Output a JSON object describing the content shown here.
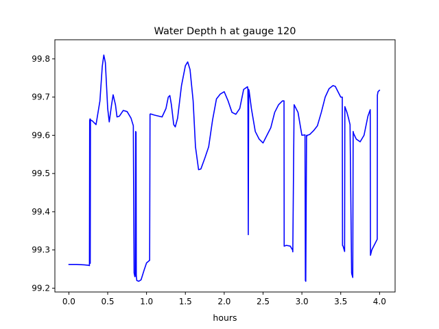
{
  "chart_data": {
    "type": "line",
    "title": "Water Depth h at gauge 120",
    "xlabel": "hours",
    "ylabel": "",
    "xlim": [
      -0.18,
      4.2
    ],
    "ylim": [
      99.19,
      99.85
    ],
    "xticks": [
      0.0,
      0.5,
      1.0,
      1.5,
      2.0,
      2.5,
      3.0,
      3.5,
      4.0
    ],
    "xtick_labels": [
      "0.0",
      "0.5",
      "1.0",
      "1.5",
      "2.0",
      "2.5",
      "3.0",
      "3.5",
      "4.0"
    ],
    "yticks": [
      99.2,
      99.3,
      99.4,
      99.5,
      99.6,
      99.7,
      99.8
    ],
    "ytick_labels": [
      "99.2",
      "99.3",
      "99.4",
      "99.5",
      "99.6",
      "99.7",
      "99.8"
    ],
    "grid": false,
    "series": [
      {
        "color": "#0000ff",
        "x": [
          0.0,
          0.1,
          0.2,
          0.25,
          0.265,
          0.268,
          0.27,
          0.272,
          0.275,
          0.278,
          0.28,
          0.3,
          0.35,
          0.4,
          0.43,
          0.45,
          0.47,
          0.5,
          0.52,
          0.55,
          0.57,
          0.6,
          0.62,
          0.65,
          0.7,
          0.75,
          0.8,
          0.83,
          0.84,
          0.845,
          0.85,
          0.855,
          0.86,
          0.865,
          0.868,
          0.87,
          0.875,
          0.9,
          0.93,
          0.97,
          1.0,
          1.04,
          1.045,
          1.05,
          1.1,
          1.2,
          1.25,
          1.28,
          1.3,
          1.32,
          1.35,
          1.37,
          1.4,
          1.45,
          1.5,
          1.53,
          1.56,
          1.6,
          1.63,
          1.67,
          1.7,
          1.75,
          1.8,
          1.85,
          1.9,
          1.95,
          2.0,
          2.05,
          2.1,
          2.15,
          2.2,
          2.25,
          2.3,
          2.305,
          2.31,
          2.315,
          2.32,
          2.35,
          2.4,
          2.45,
          2.5,
          2.55,
          2.6,
          2.65,
          2.7,
          2.75,
          2.77,
          2.772,
          2.8,
          2.85,
          2.88,
          2.883,
          2.9,
          2.95,
          3.0,
          3.04,
          3.045,
          3.05,
          3.06,
          3.065,
          3.07,
          3.1,
          3.15,
          3.2,
          3.25,
          3.3,
          3.35,
          3.4,
          3.43,
          3.45,
          3.5,
          3.52,
          3.523,
          3.53,
          3.55,
          3.553,
          3.58,
          3.6,
          3.62,
          3.64,
          3.645,
          3.65,
          3.655,
          3.66,
          3.665,
          3.7,
          3.75,
          3.8,
          3.85,
          3.88,
          3.883,
          3.9,
          3.95,
          3.97,
          3.972,
          3.98,
          4.0
        ],
        "y": [
          99.262,
          99.262,
          99.261,
          99.26,
          99.259,
          99.64,
          99.27,
          99.643,
          99.265,
          99.642,
          99.64,
          99.638,
          99.628,
          99.69,
          99.78,
          99.81,
          99.79,
          99.67,
          99.635,
          99.68,
          99.706,
          99.68,
          99.648,
          99.65,
          99.665,
          99.662,
          99.645,
          99.625,
          99.24,
          99.235,
          99.23,
          99.232,
          99.61,
          99.608,
          99.235,
          99.228,
          99.22,
          99.218,
          99.222,
          99.248,
          99.266,
          99.273,
          99.655,
          99.656,
          99.653,
          99.648,
          99.67,
          99.7,
          99.704,
          99.68,
          99.628,
          99.622,
          99.645,
          99.73,
          99.782,
          99.792,
          99.772,
          99.69,
          99.57,
          99.51,
          99.512,
          99.54,
          99.57,
          99.64,
          99.695,
          99.708,
          99.714,
          99.69,
          99.66,
          99.655,
          99.67,
          99.72,
          99.727,
          99.72,
          99.34,
          99.72,
          99.717,
          99.67,
          99.61,
          99.59,
          99.58,
          99.6,
          99.62,
          99.66,
          99.68,
          99.69,
          99.69,
          99.31,
          99.312,
          99.31,
          99.3,
          99.295,
          99.68,
          99.66,
          99.6,
          99.601,
          99.22,
          99.218,
          99.6,
          99.598,
          99.6,
          99.602,
          99.612,
          99.625,
          99.66,
          99.7,
          99.722,
          99.73,
          99.728,
          99.72,
          99.7,
          99.7,
          99.312,
          99.31,
          99.296,
          99.675,
          99.66,
          99.645,
          99.628,
          99.24,
          99.235,
          99.232,
          99.228,
          99.61,
          99.605,
          99.59,
          99.583,
          99.6,
          99.65,
          99.667,
          99.286,
          99.3,
          99.32,
          99.328,
          99.705,
          99.714,
          99.718
        ]
      }
    ]
  }
}
